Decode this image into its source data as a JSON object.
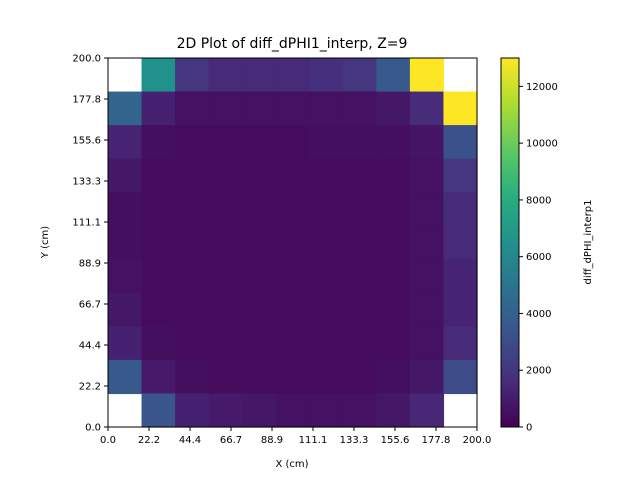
{
  "chart_data": {
    "type": "heatmap",
    "title": "2D Plot of diff_dPHI1_interp, Z=9",
    "xlabel": "X (cm)",
    "ylabel": "Y (cm)",
    "colorbar_label": "diff_dPHI_interp1",
    "colormap": "viridis",
    "x_ticks": [
      "0.0",
      "22.2",
      "44.4",
      "66.7",
      "88.9",
      "111.1",
      "133.3",
      "155.6",
      "177.8",
      "200.0"
    ],
    "y_ticks": [
      "0.0",
      "22.2",
      "44.4",
      "66.7",
      "88.9",
      "111.1",
      "133.3",
      "155.6",
      "177.8",
      "200.0"
    ],
    "xlim": [
      0,
      200
    ],
    "ylim": [
      0,
      200
    ],
    "colorbar_ticks": [
      "0",
      "2000",
      "4000",
      "6000",
      "8000",
      "10000",
      "12000"
    ],
    "clim": [
      0,
      13000
    ],
    "rows_top_to_bottom": [
      [
        null,
        6500,
        2000,
        1500,
        1500,
        1500,
        1700,
        2000,
        3600,
        13000,
        null
      ],
      [
        4200,
        1200,
        600,
        600,
        600,
        600,
        600,
        600,
        800,
        1600,
        13000
      ],
      [
        1300,
        500,
        400,
        400,
        400,
        400,
        500,
        500,
        500,
        700,
        3200
      ],
      [
        800,
        400,
        400,
        400,
        400,
        400,
        400,
        400,
        400,
        600,
        2000
      ],
      [
        500,
        400,
        400,
        400,
        400,
        400,
        400,
        400,
        400,
        600,
        1600
      ],
      [
        500,
        400,
        400,
        400,
        400,
        400,
        400,
        400,
        400,
        600,
        1500
      ],
      [
        600,
        400,
        400,
        400,
        400,
        400,
        400,
        400,
        400,
        600,
        1300
      ],
      [
        800,
        400,
        400,
        400,
        400,
        400,
        400,
        400,
        400,
        600,
        1300
      ],
      [
        1200,
        500,
        400,
        400,
        400,
        400,
        400,
        400,
        400,
        600,
        1500
      ],
      [
        3600,
        900,
        500,
        400,
        400,
        400,
        400,
        400,
        500,
        800,
        3000
      ],
      [
        null,
        3400,
        1200,
        900,
        800,
        600,
        600,
        600,
        800,
        1400,
        null
      ]
    ]
  }
}
